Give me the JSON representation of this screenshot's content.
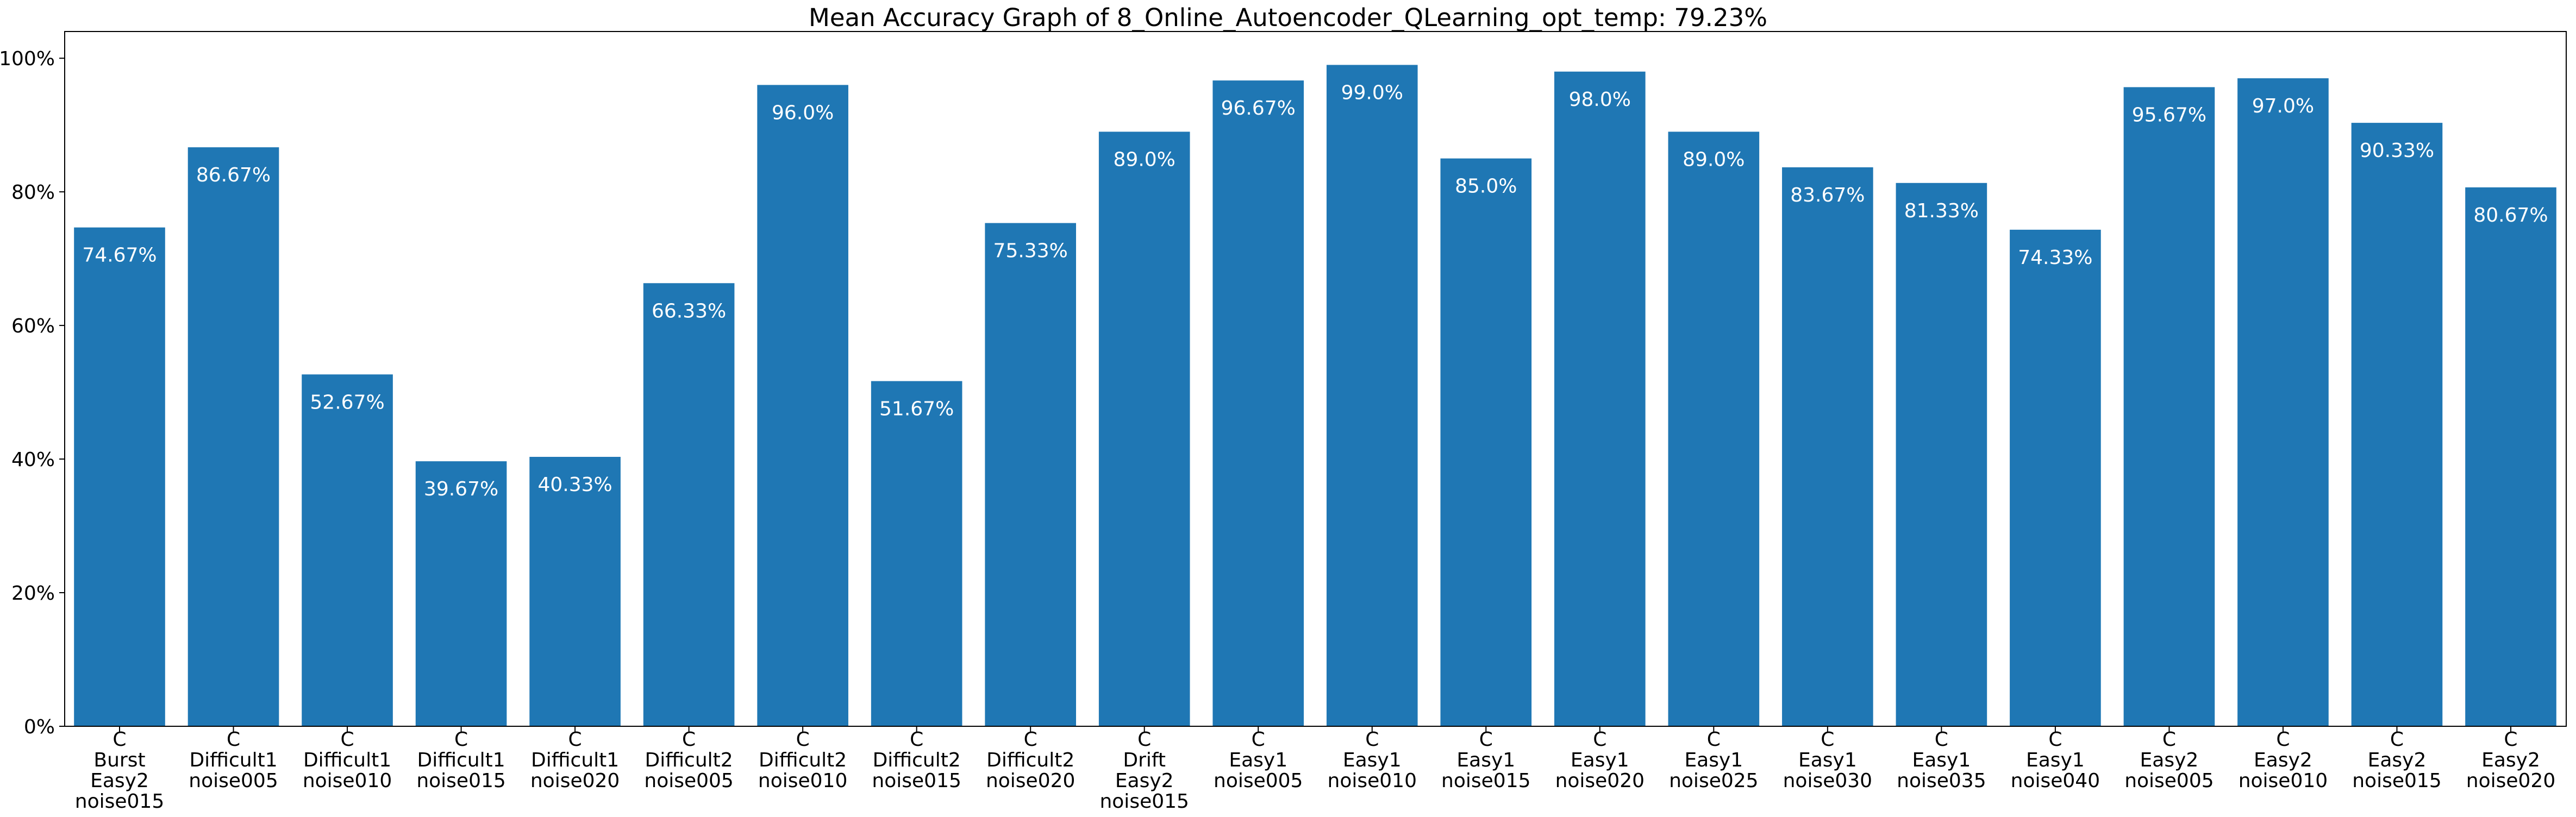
{
  "chart_data": {
    "type": "bar",
    "title": "Mean Accuracy Graph of 8_Online_Autoencoder_QLearning_opt_temp: 79.23%",
    "xlabel": "",
    "ylabel": "",
    "ylim": [
      0,
      104
    ],
    "y_ticks": [
      0,
      20,
      40,
      60,
      80,
      100
    ],
    "y_tick_labels": [
      "0%",
      "20%",
      "40%",
      "60%",
      "80%",
      "100%"
    ],
    "grid": false,
    "legend": "none",
    "bar_color": "#1f77b4",
    "value_label_color": "#ffffff",
    "categories": [
      "C\nBurst\nEasy2\nnoise015",
      "C\nDifficult1\nnoise005",
      "C\nDifficult1\nnoise010",
      "C\nDifficult1\nnoise015",
      "C\nDifficult1\nnoise020",
      "C\nDifficult2\nnoise005",
      "C\nDifficult2\nnoise010",
      "C\nDifficult2\nnoise015",
      "C\nDifficult2\nnoise020",
      "C\nDrift\nEasy2\nnoise015",
      "C\nEasy1\nnoise005",
      "C\nEasy1\nnoise010",
      "C\nEasy1\nnoise015",
      "C\nEasy1\nnoise020",
      "C\nEasy1\nnoise025",
      "C\nEasy1\nnoise030",
      "C\nEasy1\nnoise035",
      "C\nEasy1\nnoise040",
      "C\nEasy2\nnoise005",
      "C\nEasy2\nnoise010",
      "C\nEasy2\nnoise015",
      "C\nEasy2\nnoise020"
    ],
    "values": [
      74.67,
      86.67,
      52.67,
      39.67,
      40.33,
      66.33,
      96.0,
      51.67,
      75.33,
      89.0,
      96.67,
      99.0,
      85.0,
      98.0,
      89.0,
      83.67,
      81.33,
      74.33,
      95.67,
      97.0,
      90.33,
      80.67
    ],
    "value_labels": [
      "74.67%",
      "86.67%",
      "52.67%",
      "39.67%",
      "40.33%",
      "66.33%",
      "96.0%",
      "51.67%",
      "75.33%",
      "89.0%",
      "96.67%",
      "99.0%",
      "85.0%",
      "98.0%",
      "89.0%",
      "83.67%",
      "81.33%",
      "74.33%",
      "95.67%",
      "97.0%",
      "90.33%",
      "80.67%"
    ]
  }
}
